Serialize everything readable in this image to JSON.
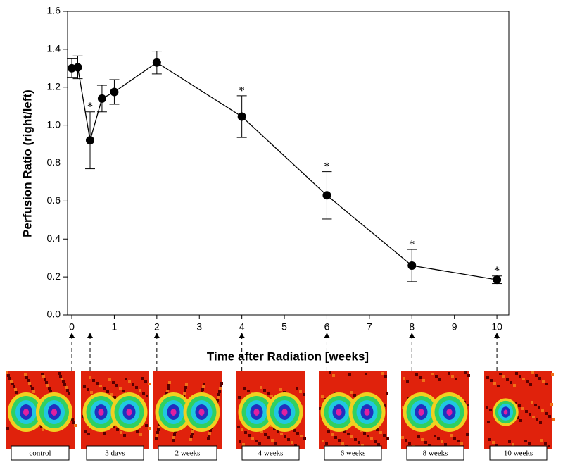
{
  "chart_data": {
    "type": "line",
    "x_label": "Time after Radiation [weeks]",
    "y_label": "Perfusion Ratio (right/left)",
    "x": [
      0,
      0.14,
      0.43,
      0.71,
      1,
      2,
      4,
      6,
      8,
      10
    ],
    "series": [
      {
        "name": "Perfusion Ratio",
        "color": "#000000",
        "values": [
          1.3,
          1.305,
          0.92,
          1.14,
          1.175,
          1.33,
          1.045,
          0.63,
          0.26,
          0.185
        ],
        "errors": [
          0.05,
          0.06,
          0.15,
          0.07,
          0.065,
          0.06,
          0.11,
          0.125,
          0.085,
          0.02
        ]
      }
    ],
    "xlim": [
      -0.1,
      10.28
    ],
    "ylim": [
      0,
      1.6
    ],
    "xticks": [
      0,
      1,
      2,
      3,
      4,
      5,
      6,
      7,
      8,
      9,
      10
    ],
    "yticks": [
      {
        "value": 0,
        "label": "0.0"
      },
      {
        "value": 0.2,
        "label": "0.2"
      },
      {
        "value": 0.4,
        "label": "0.4"
      },
      {
        "value": 0.6,
        "label": "0.6"
      },
      {
        "value": 0.8,
        "label": "0.8"
      },
      {
        "value": 1.0,
        "label": "1.0"
      },
      {
        "value": 1.2,
        "label": "1.2"
      },
      {
        "value": 1.4,
        "label": "1.4"
      },
      {
        "value": 1.6,
        "label": "1.6"
      }
    ],
    "annotations": [
      {
        "text": "*",
        "x": 0.43
      },
      {
        "text": "*",
        "x": 4
      },
      {
        "text": "*",
        "x": 6
      },
      {
        "text": "*",
        "x": 8
      },
      {
        "text": "*",
        "x": 10
      }
    ],
    "thumbnails": [
      {
        "label": "control",
        "x": 0
      },
      {
        "label": "3 days",
        "x": 0.43
      },
      {
        "label": "2 weeks",
        "x": 2
      },
      {
        "label": "4 weeks",
        "x": 4
      },
      {
        "label": "6 weeks",
        "x": 6
      },
      {
        "label": "8 weeks",
        "x": 8
      },
      {
        "label": "10 weeks",
        "x": 10
      }
    ]
  }
}
